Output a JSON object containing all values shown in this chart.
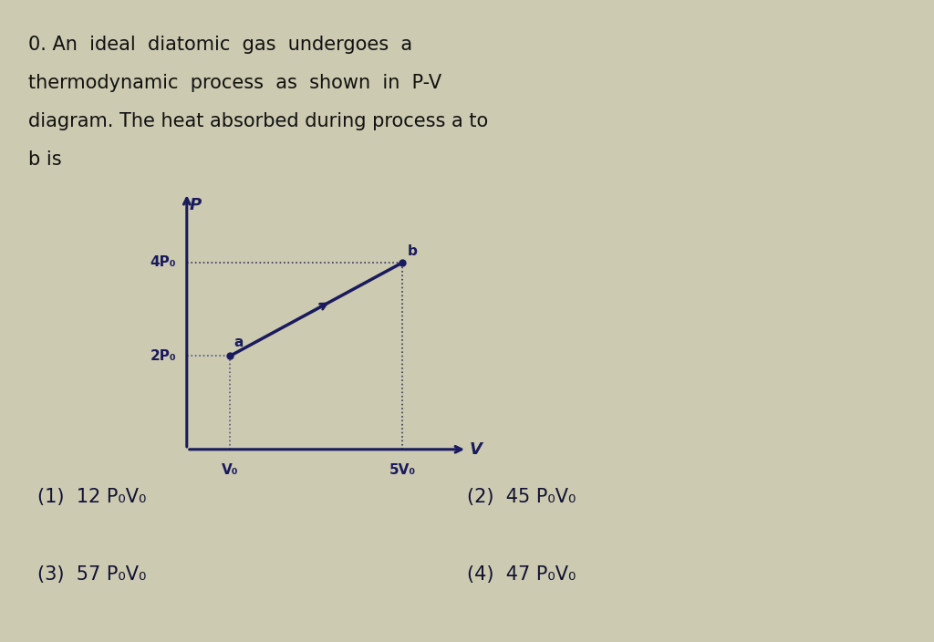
{
  "background_color": "#cccab0",
  "fig_width": 10.24,
  "fig_height": 7.04,
  "dpi": 100,
  "xlabel": "V",
  "ylabel": "P",
  "axis_label_fontsize": 13,
  "point_a": [
    1,
    2
  ],
  "point_b": [
    5,
    4
  ],
  "point_a_label": "a",
  "point_b_label": "b",
  "yticks": [
    2,
    4
  ],
  "ytick_labels": [
    "2P₀",
    "4P₀"
  ],
  "xticks": [
    1,
    5
  ],
  "xtick_labels": [
    "V₀",
    "5V₀"
  ],
  "process_color": "#1a1a5e",
  "dotted_color": "#1a1a5e",
  "dotted_style": ":",
  "arrow_color": "#1a1a5e",
  "answer_options": [
    "(1)  12 P₀V₀",
    "(2)  45 P₀V₀",
    "(3)  57 P₀V₀",
    "(4)  47 P₀V₀"
  ],
  "answer_fontsize": 15,
  "answer_color": "#111133",
  "xlim": [
    0,
    6.5
  ],
  "ylim": [
    0,
    5.5
  ],
  "text_lines": [
    "0. An  ideal  diatomic  gas  undergoes  a",
    "thermodynamic  process  as  shown  in  P-V",
    "diagram. The heat absorbed during process a to",
    "b is"
  ],
  "text_fontsize": 15,
  "text_color": "#111111"
}
